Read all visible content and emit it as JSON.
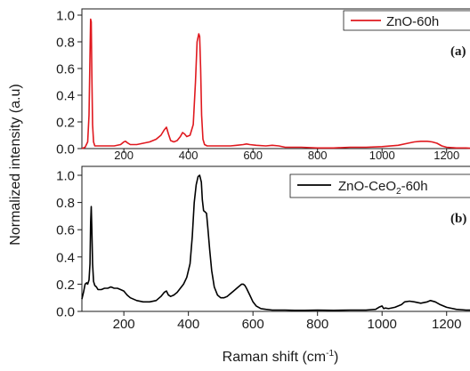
{
  "chart_data": [
    {
      "type": "line",
      "panel_label": "(a)",
      "legend": [
        "ZnO-60h"
      ],
      "xlim": [
        70,
        1300
      ],
      "ylim": [
        0,
        1.0
      ],
      "x_ticks": [
        200,
        400,
        600,
        800,
        1000,
        1200
      ],
      "x_tick_labels": [
        "200",
        "400",
        "600",
        "800",
        "1000",
        "1200"
      ],
      "y_ticks": [
        0.0,
        0.2,
        0.4,
        0.6,
        0.8,
        1.0
      ],
      "y_tick_labels": [
        "0.0",
        "0.2",
        "0.4",
        "0.6",
        "0.8",
        "1.0"
      ],
      "color": "#e0191f",
      "series": [
        {
          "name": "ZnO-60h",
          "x": [
            70,
            80,
            88,
            92,
            95,
            97,
            99,
            101,
            103,
            106,
            110,
            120,
            140,
            170,
            190,
            200,
            205,
            210,
            220,
            240,
            260,
            280,
            300,
            315,
            325,
            332,
            338,
            345,
            355,
            365,
            375,
            382,
            388,
            395,
            405,
            415,
            422,
            427,
            432,
            435,
            438,
            441,
            445,
            450,
            458,
            470,
            490,
            510,
            530,
            550,
            570,
            580,
            590,
            610,
            640,
            660,
            680,
            700,
            750,
            800,
            850,
            900,
            950,
            1000,
            1050,
            1080,
            1100,
            1120,
            1140,
            1155,
            1170,
            1185,
            1200,
            1230,
            1260,
            1300
          ],
          "y": [
            0.0,
            0.01,
            0.05,
            0.25,
            0.7,
            0.97,
            0.95,
            0.55,
            0.18,
            0.05,
            0.02,
            0.02,
            0.02,
            0.02,
            0.03,
            0.05,
            0.055,
            0.045,
            0.03,
            0.03,
            0.04,
            0.05,
            0.07,
            0.1,
            0.14,
            0.16,
            0.11,
            0.06,
            0.05,
            0.06,
            0.09,
            0.12,
            0.11,
            0.09,
            0.1,
            0.18,
            0.5,
            0.8,
            0.86,
            0.84,
            0.6,
            0.25,
            0.07,
            0.03,
            0.02,
            0.02,
            0.02,
            0.02,
            0.02,
            0.025,
            0.03,
            0.035,
            0.03,
            0.025,
            0.02,
            0.025,
            0.02,
            0.01,
            0.01,
            0.005,
            0.005,
            0.01,
            0.01,
            0.015,
            0.025,
            0.04,
            0.05,
            0.055,
            0.055,
            0.05,
            0.04,
            0.02,
            0.01,
            0.005,
            0.005,
            0.0
          ]
        }
      ]
    },
    {
      "type": "line",
      "panel_label": "(b)",
      "legend": [
        "ZnO-CeO",
        "2",
        "-60h"
      ],
      "xlabel": "Raman shift (cm",
      "xlabel_sup": "-1",
      "xlabel_end": ")",
      "ylabel": "Normalized intensity (a.u)",
      "xlim": [
        70,
        1300
      ],
      "ylim": [
        0,
        1.0
      ],
      "x_ticks": [
        200,
        400,
        600,
        800,
        1000,
        1200
      ],
      "x_tick_labels": [
        "200",
        "400",
        "600",
        "800",
        "1000",
        "1200"
      ],
      "y_ticks": [
        0.0,
        0.2,
        0.4,
        0.6,
        0.8,
        1.0
      ],
      "y_tick_labels": [
        "0.0",
        "0.2",
        "0.4",
        "0.6",
        "0.8",
        "1.0"
      ],
      "color": "#000000",
      "series": [
        {
          "name": "ZnO-CeO2-60h",
          "x": [
            70,
            75,
            80,
            85,
            88,
            92,
            95,
            97,
            99,
            101,
            103,
            106,
            110,
            115,
            120,
            130,
            140,
            150,
            160,
            170,
            180,
            190,
            200,
            210,
            220,
            240,
            260,
            280,
            300,
            315,
            325,
            332,
            338,
            345,
            355,
            365,
            375,
            385,
            395,
            405,
            412,
            418,
            424,
            430,
            435,
            440,
            443,
            447,
            452,
            456,
            460,
            466,
            472,
            480,
            490,
            500,
            510,
            520,
            530,
            540,
            550,
            560,
            565,
            570,
            575,
            580,
            590,
            600,
            610,
            625,
            640,
            660,
            680,
            700,
            730,
            760,
            800,
            850,
            900,
            950,
            980,
            990,
            1000,
            1005,
            1010,
            1020,
            1040,
            1060,
            1070,
            1085,
            1100,
            1120,
            1140,
            1150,
            1165,
            1180,
            1200,
            1230,
            1260,
            1300
          ],
          "y": [
            0.09,
            0.14,
            0.2,
            0.21,
            0.2,
            0.23,
            0.35,
            0.65,
            0.77,
            0.6,
            0.35,
            0.22,
            0.19,
            0.18,
            0.16,
            0.16,
            0.17,
            0.17,
            0.18,
            0.17,
            0.17,
            0.16,
            0.15,
            0.12,
            0.1,
            0.08,
            0.07,
            0.07,
            0.08,
            0.11,
            0.14,
            0.15,
            0.12,
            0.11,
            0.12,
            0.14,
            0.17,
            0.2,
            0.25,
            0.35,
            0.55,
            0.8,
            0.93,
            0.99,
            1.0,
            0.95,
            0.82,
            0.74,
            0.73,
            0.72,
            0.62,
            0.45,
            0.3,
            0.18,
            0.12,
            0.1,
            0.1,
            0.11,
            0.13,
            0.15,
            0.17,
            0.19,
            0.2,
            0.2,
            0.19,
            0.17,
            0.12,
            0.07,
            0.04,
            0.02,
            0.015,
            0.01,
            0.01,
            0.01,
            0.008,
            0.008,
            0.01,
            0.008,
            0.01,
            0.01,
            0.015,
            0.03,
            0.04,
            0.02,
            0.025,
            0.02,
            0.03,
            0.05,
            0.07,
            0.075,
            0.07,
            0.06,
            0.07,
            0.08,
            0.07,
            0.05,
            0.03,
            0.015,
            0.01,
            0.01
          ]
        }
      ]
    }
  ]
}
